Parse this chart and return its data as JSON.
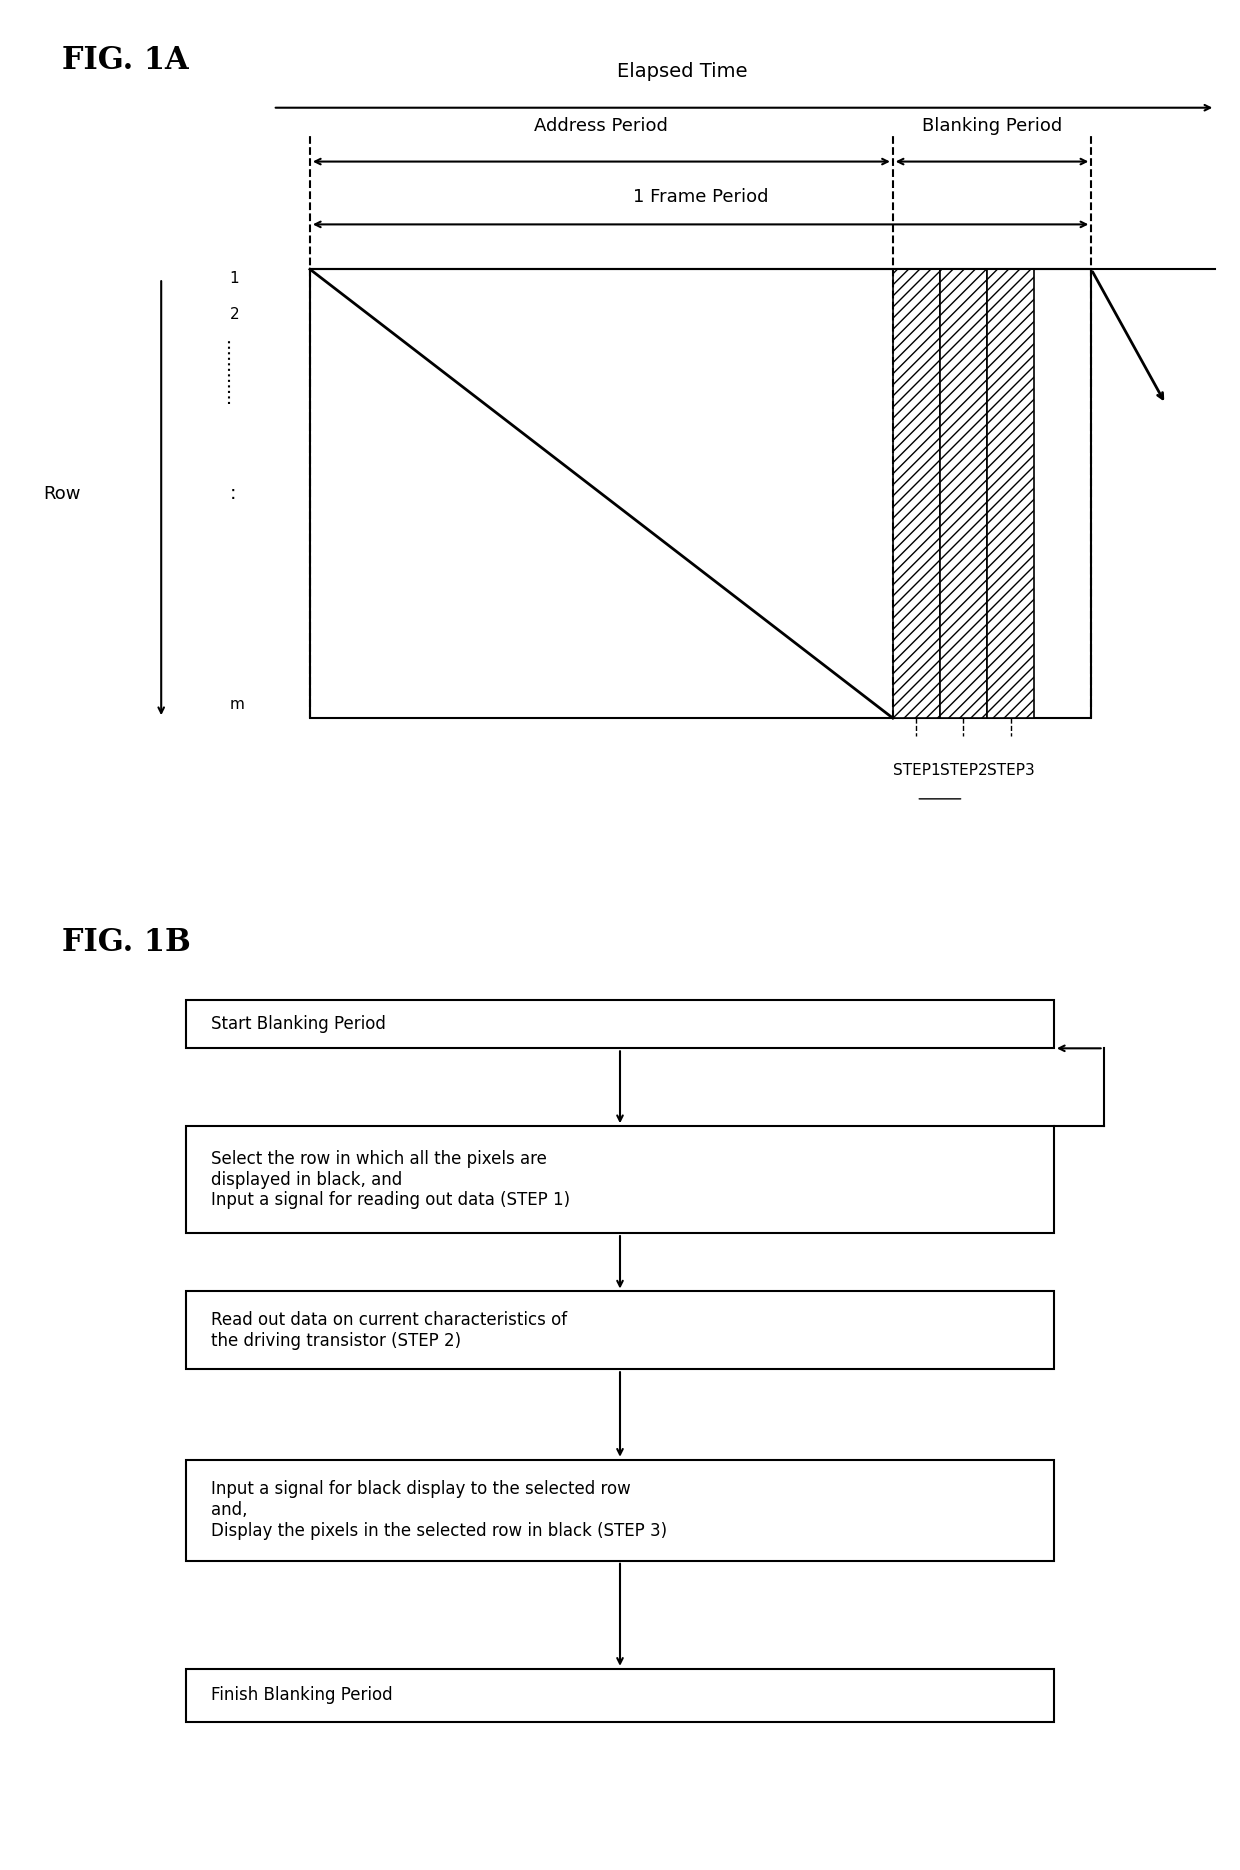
{
  "fig_title_a": "FIG. 1A",
  "fig_title_b": "FIG. 1B",
  "elapsed_time_label": "Elapsed Time",
  "address_period_label": "Address Period",
  "blanking_period_label": "Blanking Period",
  "frame_period_label": "1 Frame Period",
  "row_label": "Row",
  "row_labels": [
    "1",
    "2",
    "m"
  ],
  "step_labels": [
    "STEP1",
    "STEP2",
    "STEP3"
  ],
  "flowchart_boxes": [
    "Start Blanking Period",
    "Select the row in which all the pixels are\ndisplayed in black, and\nInput a signal for reading out data (STEP 1)",
    "Read out data on current characteristics of\nthe driving transistor (STEP 2)",
    "Input a signal for black display to the selected row\nand,\nDisplay the pixels in the selected row in black (STEP 3)",
    "Finish Blanking Period"
  ],
  "bg_color": "#ffffff",
  "line_color": "#000000",
  "hatch_color": "#000000"
}
